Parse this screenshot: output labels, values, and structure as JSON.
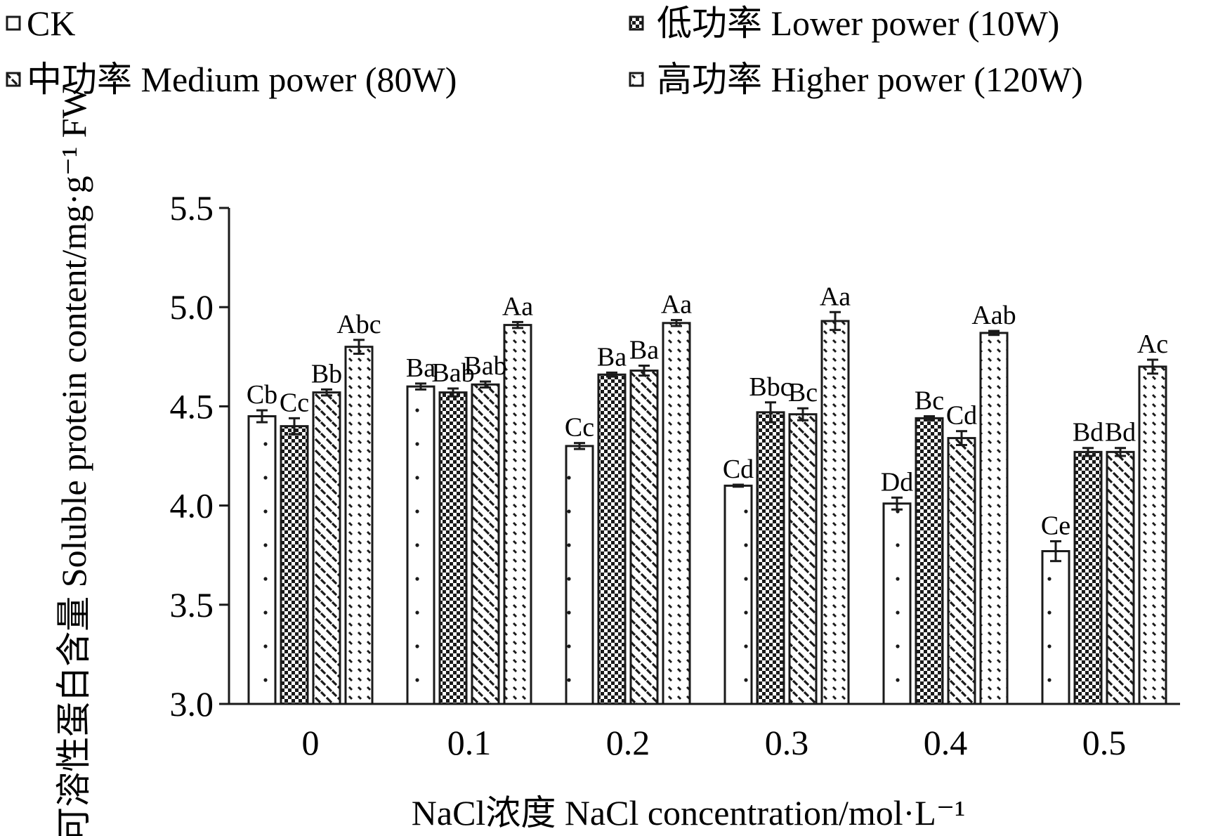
{
  "chart_data": {
    "type": "bar",
    "xlabel": "NaCl浓度 NaCl concentration/mol·L⁻¹",
    "ylabel": "可溶性蛋白含量 Soluble protein content/mg·g⁻¹ FW",
    "ylim": [
      3.0,
      5.5
    ],
    "yticks": [
      "3.0",
      "3.5",
      "4.0",
      "4.5",
      "5.0",
      "5.5"
    ],
    "categories": [
      "0",
      "0.1",
      "0.2",
      "0.3",
      "0.4",
      "0.5"
    ],
    "legend_position": "top",
    "series": [
      {
        "name": "CK",
        "pattern": "sparse-dots",
        "values": [
          4.45,
          4.6,
          4.3,
          4.1,
          4.01,
          3.77
        ],
        "errors": [
          0.03,
          0.015,
          0.015,
          0.005,
          0.03,
          0.05
        ],
        "labels": [
          "Cb",
          "Ba",
          "Cc",
          "Cd",
          "Dd",
          "Ce"
        ]
      },
      {
        "name": "低功率 Lower power (10W)",
        "pattern": "checker",
        "values": [
          4.4,
          4.57,
          4.66,
          4.47,
          4.44,
          4.27
        ],
        "errors": [
          0.04,
          0.02,
          0.01,
          0.05,
          0.01,
          0.02
        ],
        "labels": [
          "Cc",
          "Bab",
          "Ba",
          "Bbc",
          "Bc",
          "Bd"
        ]
      },
      {
        "name": "中功率 Medium power (80W)",
        "pattern": "diagonal-dashes",
        "values": [
          4.57,
          4.61,
          4.68,
          4.46,
          4.34,
          4.27
        ],
        "errors": [
          0.015,
          0.015,
          0.025,
          0.03,
          0.035,
          0.02
        ],
        "labels": [
          "Bb",
          "Bab",
          "Ba",
          "Bc",
          "Cd",
          "Bd"
        ]
      },
      {
        "name": "高功率 Higher power (120W)",
        "pattern": "dense-dashes",
        "values": [
          4.8,
          4.91,
          4.92,
          4.93,
          4.87,
          4.7
        ],
        "errors": [
          0.035,
          0.015,
          0.015,
          0.045,
          0.01,
          0.035
        ],
        "labels": [
          "Abc",
          "Aa",
          "Aa",
          "Aa",
          "Aab",
          "Ac"
        ]
      }
    ],
    "colors": {
      "ink": "#1a1a1a",
      "background": "#ffffff"
    }
  }
}
